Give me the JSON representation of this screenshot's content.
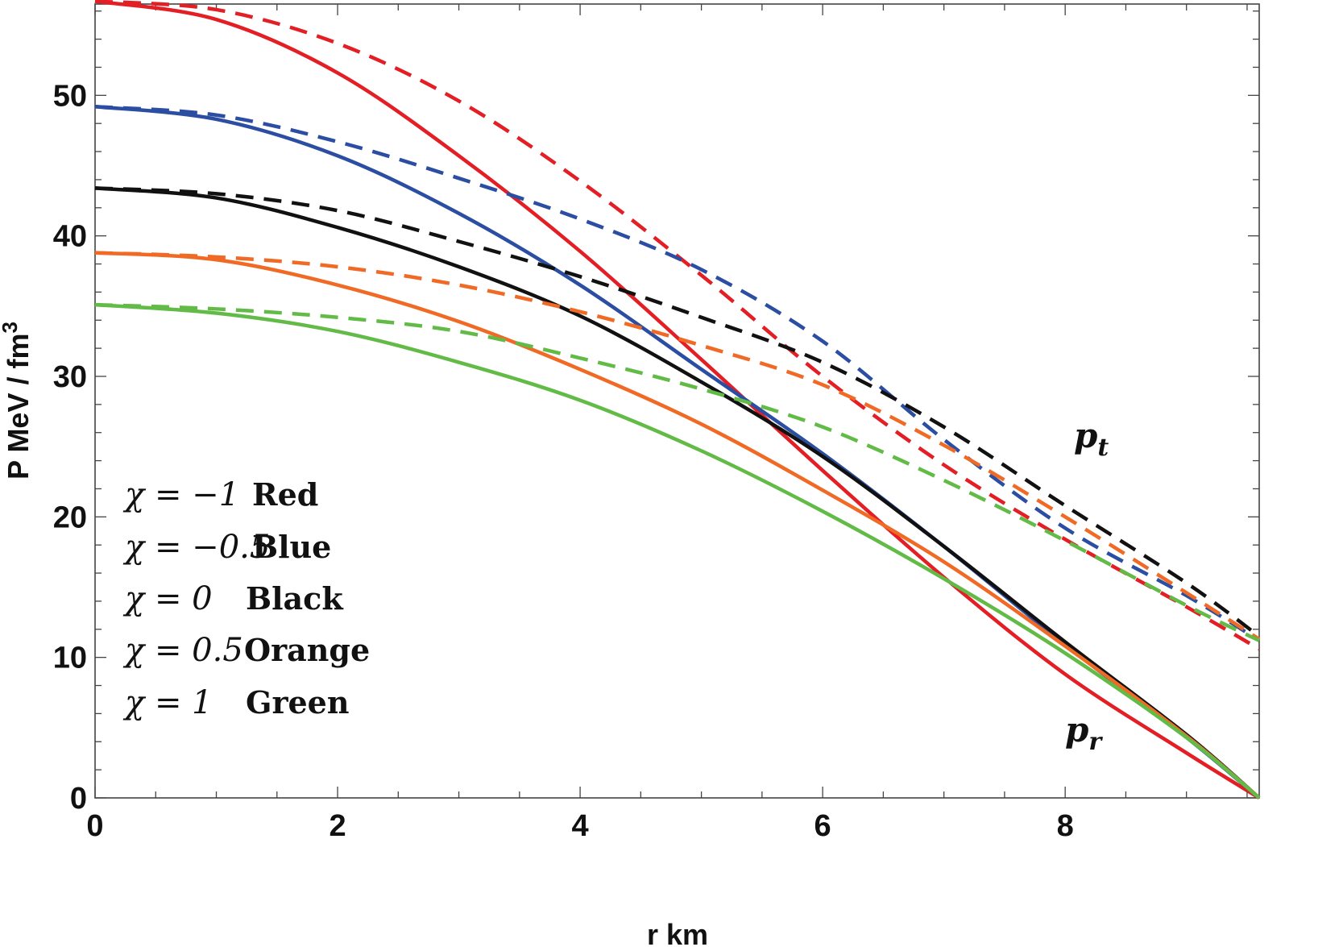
{
  "chart_data": {
    "type": "line",
    "title": "",
    "xlabel": "r  km",
    "ylabel": "P  MeV / fm",
    "ylabel_superscript": "3",
    "xlim": [
      0,
      9.6
    ],
    "ylim": [
      0,
      56.5
    ],
    "xticks": [
      0,
      2,
      4,
      6,
      8
    ],
    "yticks": [
      0,
      10,
      20,
      30,
      40,
      50
    ],
    "grid": false,
    "x": [
      0,
      1,
      2,
      3,
      4,
      5,
      6,
      7,
      8,
      9,
      9.6
    ],
    "series": [
      {
        "name": "pr chi=-1",
        "color": "#e31e24",
        "style": "solid",
        "values": [
          56.7,
          55.4,
          51.6,
          45.7,
          38.9,
          31.2,
          23.3,
          15.7,
          8.8,
          3.2,
          0
        ]
      },
      {
        "name": "pt chi=-1",
        "color": "#e31e24",
        "style": "dashed",
        "values": [
          56.7,
          56.1,
          53.7,
          49.6,
          43.9,
          37.2,
          30.0,
          23.7,
          18.4,
          13.6,
          10.6
        ]
      },
      {
        "name": "pr chi=-0.5",
        "color": "#2b4ea2",
        "style": "solid",
        "values": [
          49.2,
          48.3,
          45.7,
          41.6,
          36.5,
          30.5,
          24.5,
          17.9,
          10.9,
          4.3,
          0
        ]
      },
      {
        "name": "pt chi=-0.5",
        "color": "#2b4ea2",
        "style": "dashed",
        "values": [
          49.2,
          48.6,
          46.7,
          44.1,
          41.2,
          37.6,
          32.5,
          25.5,
          19.2,
          14.4,
          11.2
        ]
      },
      {
        "name": "pr chi=0",
        "color": "#111111",
        "style": "solid",
        "values": [
          43.4,
          42.7,
          40.6,
          37.8,
          34.3,
          29.6,
          24.3,
          17.9,
          11.1,
          4.5,
          0
        ]
      },
      {
        "name": "pt chi=0",
        "color": "#111111",
        "style": "dashed",
        "values": [
          43.4,
          43.0,
          41.8,
          39.6,
          37.1,
          34.2,
          31.0,
          26.4,
          20.8,
          15.3,
          11.5
        ]
      },
      {
        "name": "pr chi=0.5",
        "color": "#f06a25",
        "style": "solid",
        "values": [
          38.8,
          38.3,
          36.5,
          33.9,
          30.5,
          26.6,
          21.9,
          16.8,
          10.8,
          4.4,
          0
        ]
      },
      {
        "name": "pt chi=0.5",
        "color": "#f06a25",
        "style": "dashed",
        "values": [
          38.8,
          38.5,
          37.8,
          36.5,
          34.6,
          32.2,
          29.4,
          25.1,
          20.0,
          14.6,
          11.3
        ]
      },
      {
        "name": "pr chi=1",
        "color": "#62bb46",
        "style": "solid",
        "values": [
          35.1,
          34.5,
          33.2,
          31.0,
          28.3,
          24.7,
          20.4,
          15.6,
          10.3,
          4.3,
          0
        ]
      },
      {
        "name": "pt chi=1",
        "color": "#62bb46",
        "style": "dashed",
        "values": [
          35.1,
          34.8,
          34.2,
          33.2,
          31.3,
          29.1,
          26.4,
          22.6,
          18.3,
          13.7,
          11.2
        ]
      }
    ],
    "legend": [
      {
        "chi": "χ = −1",
        "name": "Red"
      },
      {
        "chi": "χ = −0.5",
        "name": "Blue"
      },
      {
        "chi": "χ = 0",
        "name": "Black"
      },
      {
        "chi": "χ = 0.5",
        "name": "Orange"
      },
      {
        "chi": "χ = 1",
        "name": "Green"
      }
    ],
    "annotations": [
      {
        "text": "p",
        "sub": "t"
      },
      {
        "text": "p",
        "sub": "r"
      }
    ]
  }
}
